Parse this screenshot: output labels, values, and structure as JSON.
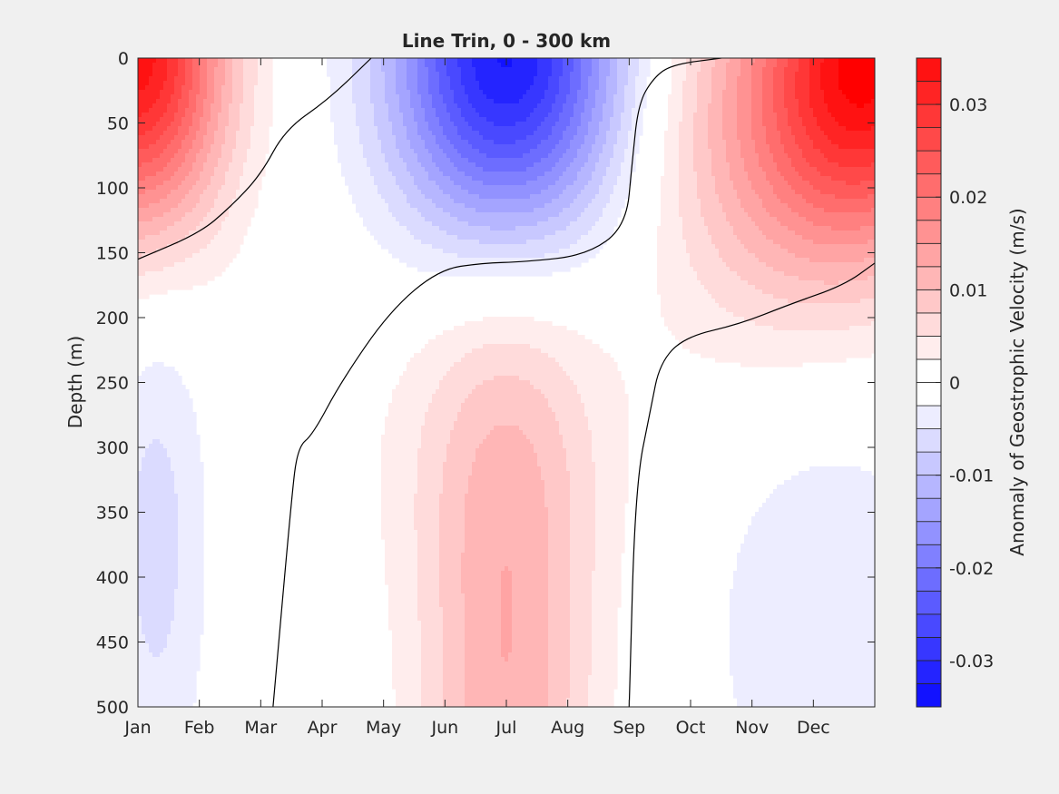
{
  "chart_data": {
    "type": "heatmap",
    "subtype": "filled-contour",
    "title": "Line Trin, 0 - 300 km",
    "xlabel": "",
    "ylabel": "Depth (m)",
    "x_tick_labels": [
      "Jan",
      "Feb",
      "Mar",
      "Apr",
      "May",
      "Jun",
      "Jul",
      "Aug",
      "Sep",
      "Oct",
      "Nov",
      "Dec"
    ],
    "y_tick_labels": [
      "0",
      "50",
      "100",
      "150",
      "200",
      "250",
      "300",
      "350",
      "400",
      "450",
      "500"
    ],
    "xlim": [
      1,
      13
    ],
    "ylim": [
      0,
      500
    ],
    "y_reversed": true,
    "zero_contour_lines": [
      [
        [
          1.0,
          155
        ],
        [
          2.0,
          135
        ],
        [
          2.5,
          115
        ],
        [
          3.0,
          90
        ],
        [
          3.4,
          55
        ],
        [
          4.1,
          32
        ],
        [
          4.8,
          0
        ]
      ],
      [
        [
          3.2,
          500
        ],
        [
          3.5,
          340
        ],
        [
          3.6,
          300
        ],
        [
          3.85,
          290
        ],
        [
          4.3,
          250
        ],
        [
          5.1,
          195
        ],
        [
          5.9,
          163
        ],
        [
          6.6,
          158
        ],
        [
          7.3,
          157
        ],
        [
          8.3,
          152
        ],
        [
          8.95,
          130
        ],
        [
          9.05,
          80
        ],
        [
          9.15,
          35
        ],
        [
          9.4,
          15
        ],
        [
          9.7,
          5
        ],
        [
          10.5,
          0
        ]
      ],
      [
        [
          9.0,
          500
        ],
        [
          9.1,
          330
        ],
        [
          9.35,
          270
        ],
        [
          9.5,
          235
        ],
        [
          9.9,
          215
        ],
        [
          10.8,
          205
        ],
        [
          11.6,
          190
        ],
        [
          12.5,
          175
        ],
        [
          13.0,
          158
        ]
      ]
    ],
    "colorbar": {
      "label": "Anomaly of Geostrophic Velocity (m/s)",
      "range": [
        -0.035,
        0.035
      ],
      "level_step": 0.0025,
      "tick_labels": [
        "0.03",
        "0.02",
        "0.01",
        "0",
        "-0.01",
        "-0.02",
        "-0.03"
      ],
      "positive_color": "#ff0000",
      "negative_color": "#0000ff",
      "neutral_color": "#ffffff"
    }
  },
  "colors": {
    "background": "#f0f0f0",
    "axis_line": "#262626",
    "contour_line": "#000000"
  }
}
